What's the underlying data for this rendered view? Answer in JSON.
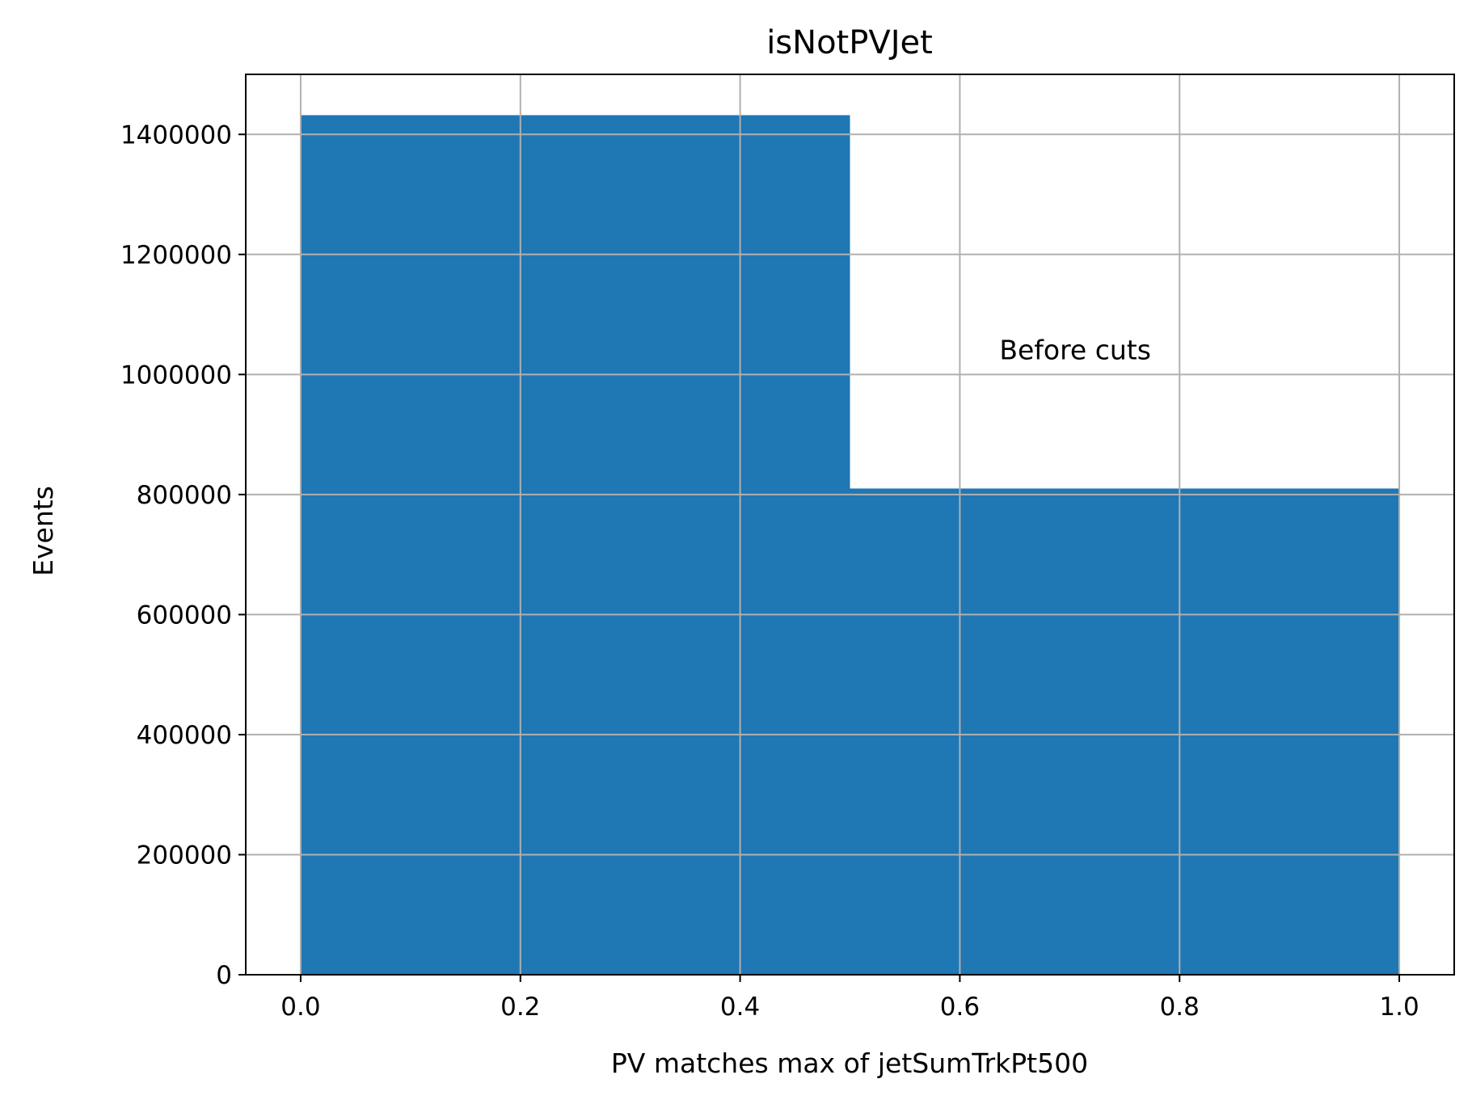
{
  "chart_data": {
    "type": "bar",
    "title": "isNotPVJet",
    "xlabel": "PV matches max of jetSumTrkPt500",
    "ylabel": "Events",
    "bins": [
      {
        "x_start": 0.0,
        "x_end": 0.5,
        "value": 1432000
      },
      {
        "x_start": 0.5,
        "x_end": 1.0,
        "value": 810000
      }
    ],
    "xlim": [
      -0.05,
      1.05
    ],
    "ylim": [
      0,
      1500000
    ],
    "x_ticks": [
      0.0,
      0.2,
      0.4,
      0.6,
      0.8,
      1.0
    ],
    "x_tick_labels": [
      "0.0",
      "0.2",
      "0.4",
      "0.6",
      "0.8",
      "1.0"
    ],
    "y_ticks": [
      0,
      200000,
      400000,
      600000,
      800000,
      1000000,
      1200000,
      1400000
    ],
    "y_tick_labels": [
      "0",
      "200000",
      "400000",
      "600000",
      "800000",
      "1000000",
      "1200000",
      "1400000"
    ],
    "annotation": {
      "text": "Before cuts",
      "x": 0.636,
      "y": 1040000
    },
    "grid": true,
    "colors": {
      "bar": "#1f77b4",
      "grid": "#b0b0b0",
      "axes": "#000000"
    }
  }
}
